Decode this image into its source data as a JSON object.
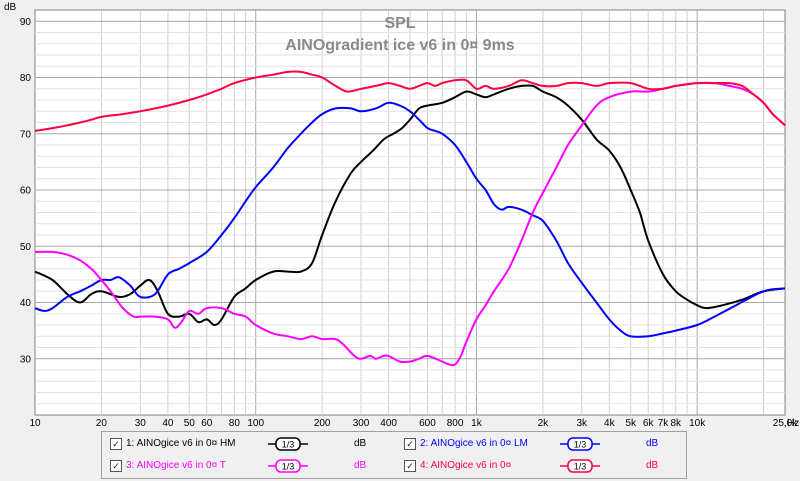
{
  "chart_data": {
    "type": "line",
    "title": "SPL",
    "subtitle": "AINOgradient ice v6 in 0¤ 9ms",
    "ylabel": "dB",
    "xunit": "Hz",
    "xscale": "log",
    "xlim": [
      10,
      25000
    ],
    "ylim": [
      20,
      92
    ],
    "grid": true,
    "y_ticks": [
      30,
      40,
      50,
      60,
      70,
      80,
      90
    ],
    "x_ticks": [
      {
        "v": 10,
        "l": "10"
      },
      {
        "v": 20,
        "l": "20"
      },
      {
        "v": 30,
        "l": "30"
      },
      {
        "v": 40,
        "l": "40"
      },
      {
        "v": 50,
        "l": "50"
      },
      {
        "v": 60,
        "l": "60"
      },
      {
        "v": 80,
        "l": "80"
      },
      {
        "v": 100,
        "l": "100"
      },
      {
        "v": 200,
        "l": "200"
      },
      {
        "v": 300,
        "l": "300"
      },
      {
        "v": 400,
        "l": "400"
      },
      {
        "v": 600,
        "l": "600"
      },
      {
        "v": 800,
        "l": "800"
      },
      {
        "v": 1000,
        "l": "1k"
      },
      {
        "v": 2000,
        "l": "2k"
      },
      {
        "v": 3000,
        "l": "3k"
      },
      {
        "v": 4000,
        "l": "4k"
      },
      {
        "v": 5000,
        "l": "5k"
      },
      {
        "v": 6000,
        "l": "6k"
      },
      {
        "v": 7000,
        "l": "7k"
      },
      {
        "v": 8000,
        "l": "8k"
      },
      {
        "v": 10000,
        "l": "10k"
      },
      {
        "v": 25000,
        "l": "25,0k"
      }
    ],
    "series": [
      {
        "name": "1: AINOgice v6 in 0¤ HM",
        "color": "#000000",
        "points": [
          [
            10,
            45.5
          ],
          [
            12,
            44
          ],
          [
            14,
            41.5
          ],
          [
            16,
            40
          ],
          [
            18,
            41.5
          ],
          [
            20,
            42
          ],
          [
            24,
            41
          ],
          [
            27,
            41.5
          ],
          [
            30,
            43
          ],
          [
            33,
            44
          ],
          [
            36,
            42
          ],
          [
            40,
            38
          ],
          [
            45,
            37.5
          ],
          [
            50,
            38
          ],
          [
            55,
            36.5
          ],
          [
            60,
            37
          ],
          [
            65,
            36
          ],
          [
            70,
            37
          ],
          [
            80,
            41
          ],
          [
            90,
            42.5
          ],
          [
            100,
            44
          ],
          [
            120,
            45.5
          ],
          [
            140,
            45.5
          ],
          [
            160,
            45.5
          ],
          [
            180,
            47
          ],
          [
            200,
            52
          ],
          [
            230,
            58
          ],
          [
            270,
            63
          ],
          [
            300,
            65
          ],
          [
            340,
            67
          ],
          [
            380,
            69
          ],
          [
            420,
            70
          ],
          [
            460,
            71
          ],
          [
            500,
            72.5
          ],
          [
            550,
            74.5
          ],
          [
            600,
            75
          ],
          [
            700,
            75.5
          ],
          [
            800,
            76.5
          ],
          [
            900,
            77.5
          ],
          [
            1000,
            77
          ],
          [
            1100,
            76.5
          ],
          [
            1200,
            77
          ],
          [
            1400,
            78
          ],
          [
            1600,
            78.5
          ],
          [
            1800,
            78.5
          ],
          [
            2000,
            77.5
          ],
          [
            2300,
            76.5
          ],
          [
            2600,
            75
          ],
          [
            3000,
            72.5
          ],
          [
            3500,
            69
          ],
          [
            4000,
            67
          ],
          [
            4500,
            64
          ],
          [
            5000,
            60
          ],
          [
            5500,
            56
          ],
          [
            6000,
            51
          ],
          [
            7000,
            45
          ],
          [
            8000,
            42
          ],
          [
            9000,
            40.5
          ],
          [
            10000,
            39.5
          ],
          [
            11000,
            39
          ],
          [
            13000,
            39.5
          ],
          [
            16000,
            40.5
          ],
          [
            20000,
            42
          ],
          [
            25000,
            42.5
          ]
        ]
      },
      {
        "name": "2: AINOgice v6 in 0¤ LM",
        "color": "#0000ff",
        "points": [
          [
            10,
            39
          ],
          [
            11,
            38.5
          ],
          [
            12,
            39
          ],
          [
            14,
            41
          ],
          [
            16,
            42
          ],
          [
            18,
            43
          ],
          [
            20,
            44
          ],
          [
            22,
            44
          ],
          [
            24,
            44.5
          ],
          [
            27,
            43
          ],
          [
            30,
            41
          ],
          [
            35,
            41.5
          ],
          [
            40,
            45
          ],
          [
            45,
            46
          ],
          [
            50,
            47
          ],
          [
            60,
            49
          ],
          [
            70,
            52
          ],
          [
            80,
            55
          ],
          [
            90,
            58
          ],
          [
            100,
            60.5
          ],
          [
            120,
            64
          ],
          [
            140,
            67.5
          ],
          [
            160,
            70
          ],
          [
            180,
            72
          ],
          [
            200,
            73.5
          ],
          [
            230,
            74.5
          ],
          [
            270,
            74.5
          ],
          [
            300,
            74
          ],
          [
            350,
            74.5
          ],
          [
            400,
            75.5
          ],
          [
            450,
            75
          ],
          [
            500,
            74
          ],
          [
            550,
            72.5
          ],
          [
            600,
            71
          ],
          [
            650,
            70.5
          ],
          [
            700,
            70
          ],
          [
            800,
            68
          ],
          [
            900,
            65
          ],
          [
            1000,
            62
          ],
          [
            1100,
            60
          ],
          [
            1200,
            57.5
          ],
          [
            1300,
            56.5
          ],
          [
            1400,
            57
          ],
          [
            1600,
            56.5
          ],
          [
            1800,
            55.5
          ],
          [
            2000,
            54.5
          ],
          [
            2300,
            51
          ],
          [
            2600,
            47
          ],
          [
            3000,
            43.5
          ],
          [
            3500,
            40
          ],
          [
            4000,
            37
          ],
          [
            4500,
            35
          ],
          [
            5000,
            34
          ],
          [
            6000,
            34
          ],
          [
            7000,
            34.5
          ],
          [
            8000,
            35
          ],
          [
            10000,
            36
          ],
          [
            12000,
            37.5
          ],
          [
            15000,
            39.5
          ],
          [
            20000,
            42
          ],
          [
            25000,
            42.5
          ]
        ]
      },
      {
        "name": "3: AINOgice v6 in 0¤ T",
        "color": "#ff00ff",
        "points": [
          [
            10,
            49
          ],
          [
            12,
            49
          ],
          [
            14,
            48.5
          ],
          [
            16,
            47.5
          ],
          [
            18,
            46
          ],
          [
            20,
            44
          ],
          [
            22,
            42
          ],
          [
            25,
            39
          ],
          [
            28,
            37.5
          ],
          [
            30,
            37.5
          ],
          [
            35,
            37.5
          ],
          [
            40,
            37
          ],
          [
            43,
            35.5
          ],
          [
            46,
            36.5
          ],
          [
            50,
            38.5
          ],
          [
            55,
            38
          ],
          [
            60,
            39
          ],
          [
            70,
            39
          ],
          [
            80,
            38
          ],
          [
            90,
            37.5
          ],
          [
            100,
            36
          ],
          [
            120,
            34.5
          ],
          [
            140,
            34
          ],
          [
            160,
            33.5
          ],
          [
            180,
            34
          ],
          [
            200,
            33.5
          ],
          [
            230,
            33.5
          ],
          [
            250,
            32.5
          ],
          [
            280,
            30.5
          ],
          [
            300,
            30
          ],
          [
            330,
            30.5
          ],
          [
            350,
            30
          ],
          [
            380,
            30.5
          ],
          [
            400,
            30.5
          ],
          [
            450,
            29.5
          ],
          [
            500,
            29.5
          ],
          [
            550,
            30
          ],
          [
            600,
            30.5
          ],
          [
            700,
            29.5
          ],
          [
            750,
            29
          ],
          [
            800,
            29
          ],
          [
            850,
            30.5
          ],
          [
            900,
            33
          ],
          [
            1000,
            37
          ],
          [
            1100,
            39.5
          ],
          [
            1200,
            42
          ],
          [
            1400,
            46
          ],
          [
            1600,
            51
          ],
          [
            1800,
            56
          ],
          [
            2000,
            59.5
          ],
          [
            2300,
            64
          ],
          [
            2600,
            68
          ],
          [
            3000,
            71.5
          ],
          [
            3500,
            75
          ],
          [
            4000,
            76.5
          ],
          [
            5000,
            77.5
          ],
          [
            6000,
            77.5
          ],
          [
            7000,
            78
          ],
          [
            8000,
            78.5
          ],
          [
            10000,
            79
          ],
          [
            12000,
            79
          ],
          [
            14000,
            78.5
          ],
          [
            16000,
            78
          ],
          [
            18000,
            77
          ],
          [
            20000,
            75.5
          ],
          [
            22000,
            73.5
          ],
          [
            25000,
            71.5
          ]
        ]
      },
      {
        "name": "4: AINOgice v6 in 0¤",
        "color": "#ff0040",
        "points": [
          [
            10,
            70.5
          ],
          [
            12,
            71
          ],
          [
            14,
            71.5
          ],
          [
            16,
            72
          ],
          [
            18,
            72.5
          ],
          [
            20,
            73
          ],
          [
            25,
            73.5
          ],
          [
            30,
            74
          ],
          [
            35,
            74.5
          ],
          [
            40,
            75
          ],
          [
            50,
            76
          ],
          [
            60,
            77
          ],
          [
            70,
            78
          ],
          [
            80,
            79
          ],
          [
            100,
            80
          ],
          [
            120,
            80.5
          ],
          [
            140,
            81
          ],
          [
            160,
            81
          ],
          [
            180,
            80.5
          ],
          [
            200,
            80
          ],
          [
            230,
            78.5
          ],
          [
            260,
            77.5
          ],
          [
            300,
            78
          ],
          [
            350,
            78.5
          ],
          [
            400,
            79
          ],
          [
            450,
            78.5
          ],
          [
            500,
            78
          ],
          [
            550,
            78.5
          ],
          [
            600,
            79
          ],
          [
            650,
            78.5
          ],
          [
            700,
            79
          ],
          [
            800,
            79.5
          ],
          [
            900,
            79.5
          ],
          [
            1000,
            78
          ],
          [
            1100,
            78.5
          ],
          [
            1200,
            78
          ],
          [
            1400,
            78.5
          ],
          [
            1600,
            79.5
          ],
          [
            1800,
            79
          ],
          [
            2000,
            78.5
          ],
          [
            2300,
            78.5
          ],
          [
            2600,
            79
          ],
          [
            3000,
            79
          ],
          [
            3500,
            78.5
          ],
          [
            4000,
            79
          ],
          [
            5000,
            79
          ],
          [
            6000,
            78
          ],
          [
            7000,
            78
          ],
          [
            8000,
            78.5
          ],
          [
            10000,
            79
          ],
          [
            12000,
            79
          ],
          [
            14000,
            79
          ],
          [
            16000,
            78.5
          ],
          [
            18000,
            77
          ],
          [
            20000,
            75.5
          ],
          [
            22000,
            73.5
          ],
          [
            25000,
            71.5
          ]
        ]
      }
    ]
  },
  "legend": {
    "items": [
      {
        "label": "1: AINOgice v6 in 0¤ HM",
        "smooth": "1/3",
        "unit": "dB",
        "color": "#000000",
        "checked": "✓"
      },
      {
        "label": "2: AINOgice v6 in 0¤ LM",
        "smooth": "1/3",
        "unit": "dB",
        "color": "#0000ff",
        "checked": "✓"
      },
      {
        "label": "3: AINOgice v6 in 0¤ T",
        "smooth": "1/3",
        "unit": "dB",
        "color": "#ff00ff",
        "checked": "✓"
      },
      {
        "label": "4: AINOgice v6 in 0¤",
        "smooth": "1/3",
        "unit": "dB",
        "color": "#ff0040",
        "checked": "✓"
      }
    ]
  }
}
